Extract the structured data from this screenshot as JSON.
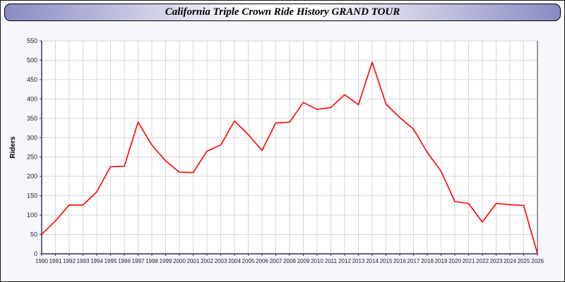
{
  "page": {
    "title": "California Triple Crown Ride History GRAND TOUR"
  },
  "title_bar": {
    "gradient_edge": "#8a8ac4",
    "gradient_center": "#ffffff",
    "border_color": "#000000"
  },
  "chart_data": {
    "type": "line",
    "title": "California Triple Crown Ride History GRAND TOUR",
    "xlabel": "",
    "ylabel": "Riders",
    "x": [
      1990,
      1991,
      1992,
      1993,
      1994,
      1995,
      1996,
      1997,
      1998,
      1999,
      2000,
      2001,
      2002,
      2003,
      2004,
      2005,
      2006,
      2007,
      2008,
      2009,
      2010,
      2011,
      2012,
      2013,
      2014,
      2015,
      2016,
      2017,
      2018,
      2019,
      2020,
      2021,
      2022,
      2023,
      2024,
      2025,
      2026
    ],
    "series": [
      {
        "name": "Riders",
        "color": "#ff0000",
        "values": [
          50,
          85,
          126,
          126,
          160,
          225,
          226,
          340,
          281,
          240,
          211,
          210,
          265,
          281,
          343,
          308,
          267,
          338,
          340,
          391,
          373,
          378,
          411,
          385,
          495,
          387,
          352,
          322,
          262,
          213,
          135,
          130,
          82,
          130,
          127,
          125,
          0
        ]
      }
    ],
    "ylim": [
      0,
      550
    ],
    "ytick_step": 50,
    "grid": true,
    "legend_position": "none",
    "plot_bg": "#ffffff",
    "grid_color": "#d6d6d6",
    "axis_color": "#333366",
    "tick_color": "#1a1a33"
  }
}
